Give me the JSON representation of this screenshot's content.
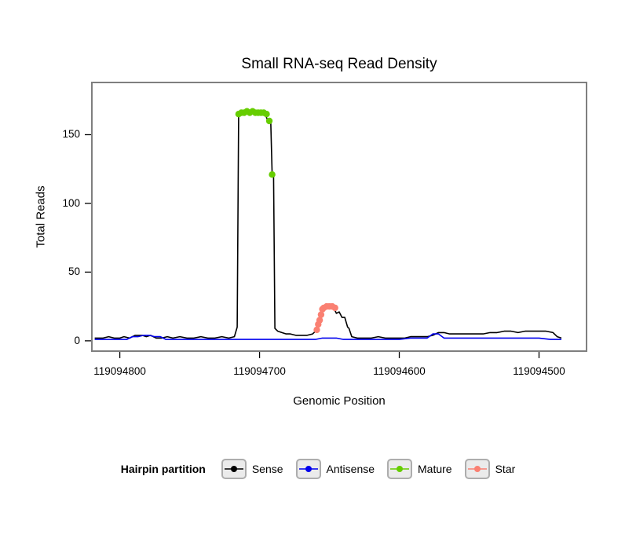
{
  "title": "Small RNA-seq Read Density",
  "axes": {
    "x": {
      "label": "Genomic Position",
      "ticks": [
        119094800,
        119094700,
        119094600,
        119094500
      ],
      "domain": [
        119094820,
        119094466
      ],
      "reversed": true
    },
    "y": {
      "label": "Total Reads",
      "ticks": [
        0,
        50,
        100,
        150
      ],
      "domain": [
        -7.5,
        188
      ]
    }
  },
  "legend": {
    "title": "Hairpin partition",
    "items": [
      {
        "label": "Sense",
        "color": "#000000"
      },
      {
        "label": "Antisense",
        "color": "#0000EE"
      },
      {
        "label": "Mature",
        "color": "#66CD00"
      },
      {
        "label": "Star",
        "color": "#FA8072"
      }
    ]
  },
  "chart_data": {
    "type": "line",
    "title": "Small RNA-seq Read Density",
    "xlabel": "Genomic Position",
    "ylabel": "Total Reads",
    "xlim": [
      119094820,
      119094466
    ],
    "ylim": [
      -7.5,
      188
    ],
    "x_reversed": true,
    "grid": false,
    "legend_position": "bottom",
    "series": [
      {
        "name": "Sense",
        "color": "#000000",
        "style": "line",
        "points": [
          [
            119094818,
            2
          ],
          [
            119094812,
            2
          ],
          [
            119094808,
            3
          ],
          [
            119094804,
            2
          ],
          [
            119094800,
            2
          ],
          [
            119094797,
            3
          ],
          [
            119094793,
            2
          ],
          [
            119094789,
            4
          ],
          [
            119094784,
            4
          ],
          [
            119094781,
            3
          ],
          [
            119094778,
            4
          ],
          [
            119094774,
            2
          ],
          [
            119094770,
            2
          ],
          [
            119094766,
            3
          ],
          [
            119094762,
            2
          ],
          [
            119094757,
            3
          ],
          [
            119094752,
            2
          ],
          [
            119094747,
            2
          ],
          [
            119094742,
            3
          ],
          [
            119094737,
            2
          ],
          [
            119094732,
            2
          ],
          [
            119094727,
            3
          ],
          [
            119094722,
            2
          ],
          [
            119094718,
            3
          ],
          [
            119094716,
            10
          ],
          [
            119094715,
            163
          ],
          [
            119094714,
            165
          ],
          [
            119094712,
            166
          ],
          [
            119094709,
            166
          ],
          [
            119094706,
            167
          ],
          [
            119094703,
            166
          ],
          [
            119094700,
            166
          ],
          [
            119094698,
            166
          ],
          [
            119094696,
            165
          ],
          [
            119094694,
            160
          ],
          [
            119094692,
            160
          ],
          [
            119094691,
            121
          ],
          [
            119094690,
            121
          ],
          [
            119094689,
            9
          ],
          [
            119094687,
            7
          ],
          [
            119094684,
            6
          ],
          [
            119094681,
            5
          ],
          [
            119094678,
            5
          ],
          [
            119094674,
            4
          ],
          [
            119094670,
            4
          ],
          [
            119094666,
            4
          ],
          [
            119094662,
            5
          ],
          [
            119094659,
            8
          ],
          [
            119094658,
            12
          ],
          [
            119094657,
            15
          ],
          [
            119094656,
            19
          ],
          [
            119094655,
            23
          ],
          [
            119094653,
            25
          ],
          [
            119094651,
            25
          ],
          [
            119094649,
            25
          ],
          [
            119094647,
            24
          ],
          [
            119094645,
            20
          ],
          [
            119094643,
            21
          ],
          [
            119094641,
            17
          ],
          [
            119094639,
            17
          ],
          [
            119094637,
            10
          ],
          [
            119094636,
            9
          ],
          [
            119094634,
            3
          ],
          [
            119094630,
            2
          ],
          [
            119094625,
            2
          ],
          [
            119094620,
            2
          ],
          [
            119094615,
            3
          ],
          [
            119094610,
            2
          ],
          [
            119094605,
            2
          ],
          [
            119094600,
            2
          ],
          [
            119094596,
            2
          ],
          [
            119094592,
            3
          ],
          [
            119094588,
            3
          ],
          [
            119094584,
            3
          ],
          [
            119094580,
            3
          ],
          [
            119094576,
            4
          ],
          [
            119094572,
            6
          ],
          [
            119094568,
            6
          ],
          [
            119094564,
            5
          ],
          [
            119094560,
            5
          ],
          [
            119094555,
            5
          ],
          [
            119094550,
            5
          ],
          [
            119094545,
            5
          ],
          [
            119094540,
            5
          ],
          [
            119094535,
            6
          ],
          [
            119094530,
            6
          ],
          [
            119094525,
            7
          ],
          [
            119094520,
            7
          ],
          [
            119094515,
            6
          ],
          [
            119094510,
            7
          ],
          [
            119094505,
            7
          ],
          [
            119094500,
            7
          ],
          [
            119094495,
            7
          ],
          [
            119094490,
            6
          ],
          [
            119094487,
            3
          ],
          [
            119094484,
            2
          ]
        ]
      },
      {
        "name": "Antisense",
        "color": "#0000EE",
        "style": "line",
        "points": [
          [
            119094818,
            1
          ],
          [
            119094810,
            1
          ],
          [
            119094800,
            1
          ],
          [
            119094795,
            1
          ],
          [
            119094791,
            3
          ],
          [
            119094787,
            3
          ],
          [
            119094783,
            4
          ],
          [
            119094779,
            4
          ],
          [
            119094775,
            3
          ],
          [
            119094771,
            3
          ],
          [
            119094767,
            1
          ],
          [
            119094760,
            1
          ],
          [
            119094750,
            1
          ],
          [
            119094740,
            1
          ],
          [
            119094730,
            1
          ],
          [
            119094720,
            1
          ],
          [
            119094710,
            1
          ],
          [
            119094700,
            1
          ],
          [
            119094690,
            1
          ],
          [
            119094680,
            1
          ],
          [
            119094670,
            1
          ],
          [
            119094660,
            1
          ],
          [
            119094655,
            2
          ],
          [
            119094650,
            2
          ],
          [
            119094645,
            2
          ],
          [
            119094640,
            1
          ],
          [
            119094630,
            1
          ],
          [
            119094620,
            1
          ],
          [
            119094610,
            1
          ],
          [
            119094600,
            1
          ],
          [
            119094592,
            2
          ],
          [
            119094588,
            2
          ],
          [
            119094584,
            2
          ],
          [
            119094580,
            2
          ],
          [
            119094576,
            5
          ],
          [
            119094572,
            5
          ],
          [
            119094568,
            2
          ],
          [
            119094560,
            2
          ],
          [
            119094550,
            2
          ],
          [
            119094540,
            2
          ],
          [
            119094530,
            2
          ],
          [
            119094520,
            2
          ],
          [
            119094510,
            2
          ],
          [
            119094500,
            2
          ],
          [
            119094492,
            1
          ],
          [
            119094484,
            1
          ]
        ]
      },
      {
        "name": "Mature",
        "color": "#66CD00",
        "style": "points",
        "points": [
          [
            119094715,
            165
          ],
          [
            119094713,
            166
          ],
          [
            119094711,
            166
          ],
          [
            119094709,
            167
          ],
          [
            119094707,
            166
          ],
          [
            119094705,
            167
          ],
          [
            119094703,
            166
          ],
          [
            119094701,
            166
          ],
          [
            119094699,
            166
          ],
          [
            119094697,
            166
          ],
          [
            119094695,
            165
          ],
          [
            119094693,
            160
          ],
          [
            119094691,
            121
          ]
        ]
      },
      {
        "name": "Star",
        "color": "#FA8072",
        "style": "points",
        "points": [
          [
            119094659,
            8
          ],
          [
            119094658,
            12
          ],
          [
            119094657,
            15
          ],
          [
            119094656,
            19
          ],
          [
            119094655,
            23
          ],
          [
            119094654,
            24
          ],
          [
            119094652,
            25
          ],
          [
            119094650,
            25
          ],
          [
            119094648,
            25
          ],
          [
            119094646,
            24
          ]
        ]
      }
    ]
  }
}
